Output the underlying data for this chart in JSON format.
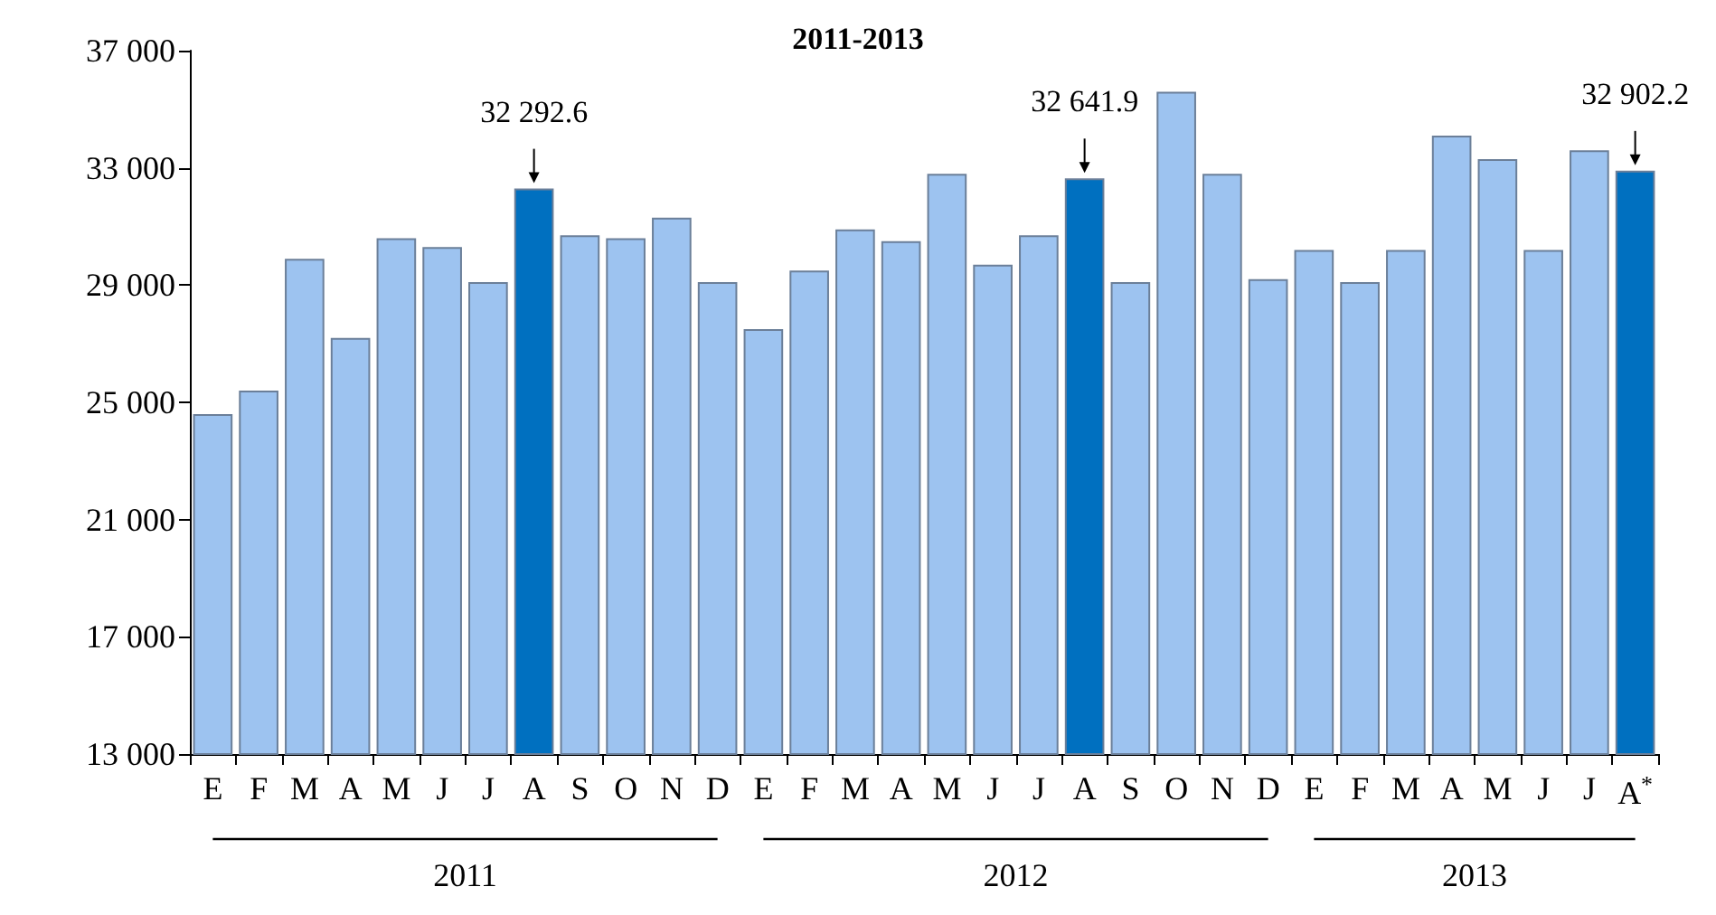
{
  "chart_data": {
    "type": "bar",
    "title": "2011-2013",
    "categories": [
      "E",
      "F",
      "M",
      "A",
      "M",
      "J",
      "J",
      "A",
      "S",
      "O",
      "N",
      "D",
      "E",
      "F",
      "M",
      "A",
      "M",
      "J",
      "J",
      "A",
      "S",
      "O",
      "N",
      "D",
      "E",
      "F",
      "M",
      "A",
      "M",
      "J",
      "J",
      "A$^{*}$"
    ],
    "values": [
      24600,
      25400,
      29900,
      27200,
      30600,
      30300,
      29100,
      32292.6,
      30700,
      30600,
      31300,
      29100,
      27500,
      29500,
      30900,
      30500,
      32800,
      29700,
      30700,
      32641.9,
      29100,
      35600,
      32800,
      29200,
      30200,
      29100,
      30200,
      34100,
      33300,
      30200,
      33600,
      32902.2
    ],
    "colors": [
      "#9dc3f0",
      "#9dc3f0",
      "#9dc3f0",
      "#9dc3f0",
      "#9dc3f0",
      "#9dc3f0",
      "#9dc3f0",
      "#0070c0",
      "#9dc3f0",
      "#9dc3f0",
      "#9dc3f0",
      "#9dc3f0",
      "#9dc3f0",
      "#9dc3f0",
      "#9dc3f0",
      "#9dc3f0",
      "#9dc3f0",
      "#9dc3f0",
      "#9dc3f0",
      "#0070c0",
      "#9dc3f0",
      "#9dc3f0",
      "#9dc3f0",
      "#9dc3f0",
      "#9dc3f0",
      "#9dc3f0",
      "#9dc3f0",
      "#9dc3f0",
      "#9dc3f0",
      "#9dc3f0",
      "#9dc3f0",
      "#0070c0"
    ],
    "value_labels": [
      null,
      null,
      null,
      null,
      null,
      null,
      null,
      "32 292.6",
      null,
      null,
      null,
      null,
      null,
      null,
      null,
      null,
      null,
      null,
      null,
      "32 641.9",
      null,
      null,
      null,
      null,
      null,
      null,
      null,
      null,
      null,
      null,
      null,
      "32 902.2"
    ],
    "annotations": [
      "2011",
      "2012",
      "2013"
    ],
    "ylim": [
      13000,
      37000
    ],
    "yticks": [
      13000,
      17000,
      21000,
      25000,
      29000,
      33000,
      37000
    ],
    "grid": false
  }
}
